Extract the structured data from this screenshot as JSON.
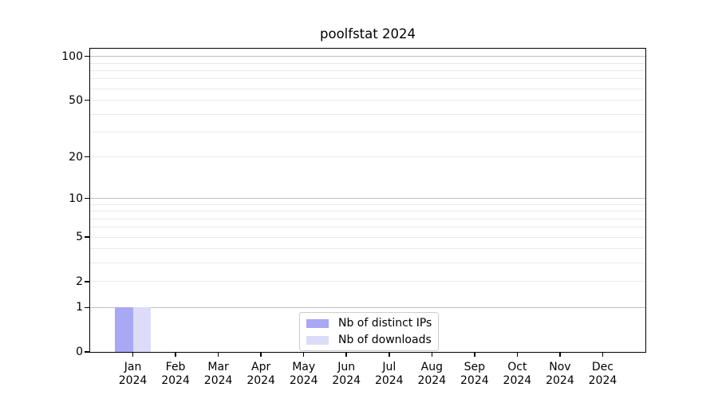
{
  "chart_data": {
    "type": "bar",
    "title": "poolfstat 2024",
    "categories": [
      "Jan",
      "Feb",
      "Mar",
      "Apr",
      "May",
      "Jun",
      "Jul",
      "Aug",
      "Sep",
      "Oct",
      "Nov",
      "Dec"
    ],
    "category_year": "2024",
    "series": [
      {
        "name": "Nb of distinct IPs",
        "color": "#a8a8f4",
        "values": [
          1,
          0,
          0,
          0,
          0,
          0,
          0,
          0,
          0,
          0,
          0,
          0
        ]
      },
      {
        "name": "Nb of downloads",
        "color": "#dcdcf8",
        "values": [
          1,
          0,
          0,
          0,
          0,
          0,
          0,
          0,
          0,
          0,
          0,
          0
        ]
      }
    ],
    "yticks": [
      0,
      1,
      2,
      5,
      10,
      20,
      50,
      100
    ],
    "xlabel": "",
    "ylabel": "",
    "scale": "log1p",
    "ylim": [
      0,
      113
    ],
    "grid": {
      "major_lines": [
        1,
        10,
        100
      ],
      "minor_lines": [
        2,
        3,
        4,
        5,
        6,
        7,
        8,
        9,
        20,
        30,
        40,
        50,
        60,
        70,
        80,
        90
      ],
      "major_color": "#bfbfbf",
      "minor_color": "#e9e9e9"
    },
    "legend_position": "bottom-center",
    "axis_color": "#000000",
    "background": "#ffffff"
  }
}
